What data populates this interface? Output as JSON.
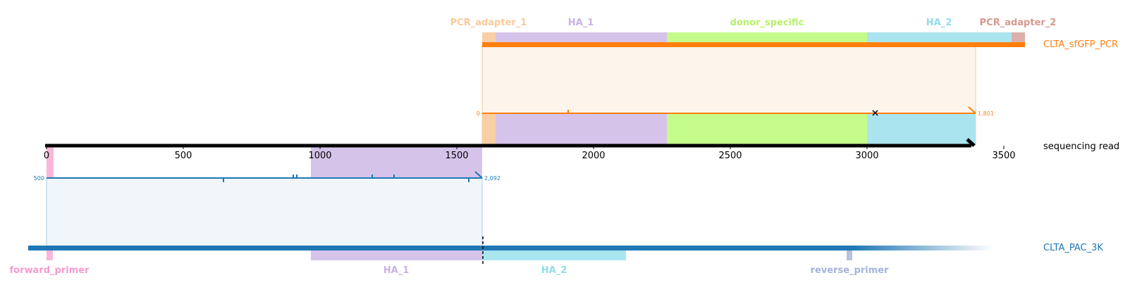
{
  "read": {
    "label": "sequencing read",
    "axis_range": [
      0,
      3590
    ],
    "tick_labels": [
      "0",
      "500",
      "1000",
      "1500",
      "2000",
      "2500",
      "3000",
      "3500"
    ],
    "tick_values": [
      0,
      500,
      1000,
      1500,
      2000,
      2500,
      3000,
      3500
    ],
    "length": 3390,
    "color": "#000000"
  },
  "top_reference": {
    "name": "CLTA_sfGFP_PCR",
    "color": "#ff7f0e",
    "start_label": "0",
    "end_label": "1,801",
    "features": [
      {
        "label": "PCR_adapter_1",
        "color": "#f9d0a6",
        "text_color": "#f9c99a"
      },
      {
        "label": "HA_1",
        "color": "#d6c3ea",
        "text_color": "#c9b1e8"
      },
      {
        "label": "donor_specific",
        "color": "#c5fb8a",
        "text_color": "#b8f06a"
      },
      {
        "label": "HA_2",
        "color": "#aae5ef",
        "text_color": "#8fdcec"
      },
      {
        "label": "PCR_adapter_2",
        "color": "#dcb0aa",
        "text_color": "#d49a90"
      }
    ]
  },
  "bottom_reference": {
    "name": "CLTA_PAC_3K",
    "color": "#1f77b4",
    "start_label": "500",
    "end_label": "2,092",
    "features": [
      {
        "label": "forward_primer",
        "color": "#f8b7da",
        "text_color": "#f49bd0"
      },
      {
        "label": "HA_1",
        "color": "#d6c3ea",
        "text_color": "#c9b1e8"
      },
      {
        "label": "HA_2",
        "color": "#aae5ef",
        "text_color": "#8fdcec"
      },
      {
        "label": "reverse_primer",
        "color": "#b7c3dc",
        "text_color": "#a3b4d8"
      }
    ]
  }
}
